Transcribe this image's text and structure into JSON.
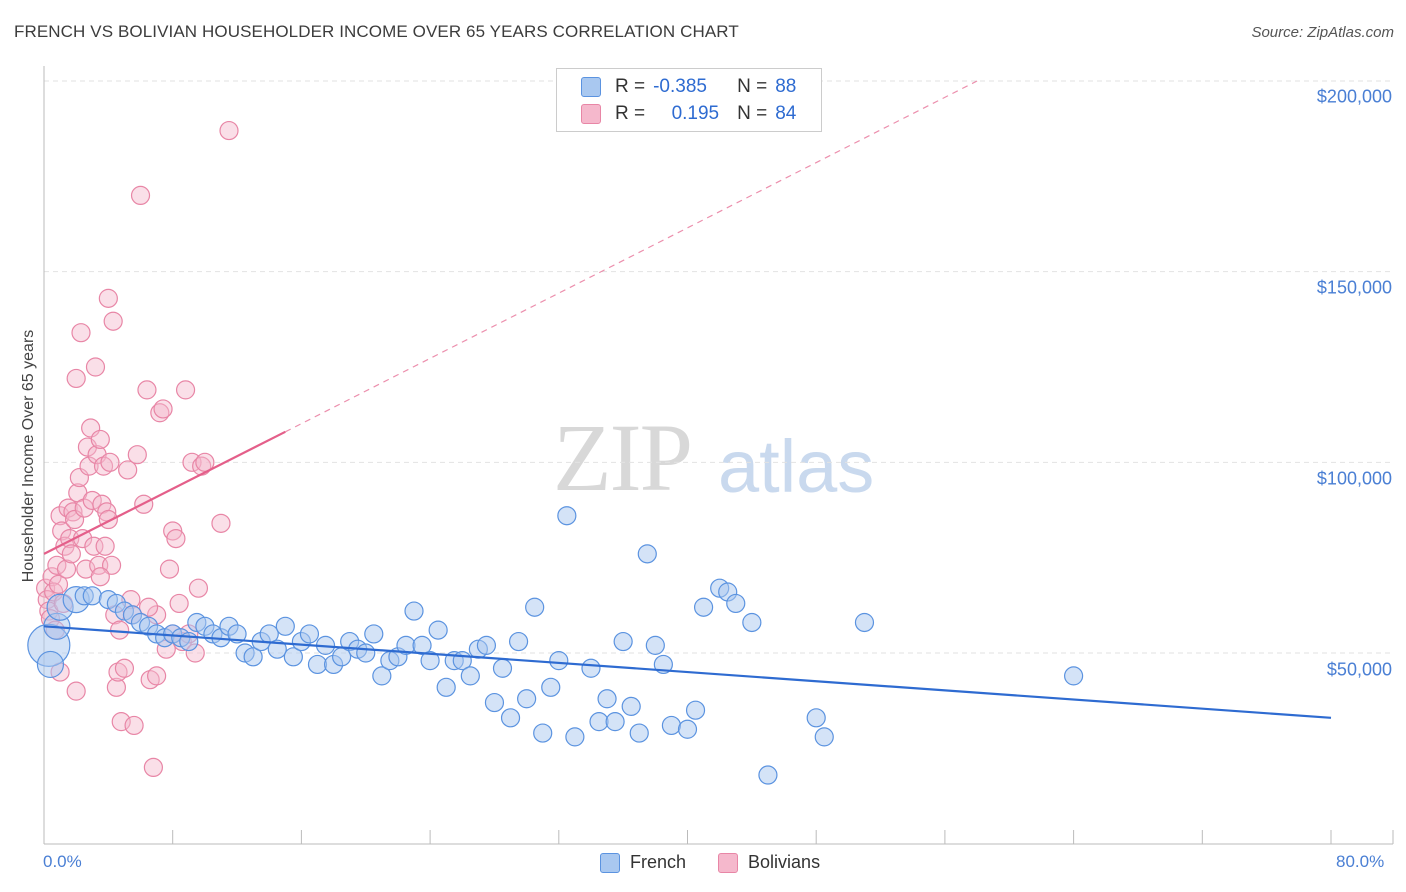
{
  "title": "FRENCH VS BOLIVIAN HOUSEHOLDER INCOME OVER 65 YEARS CORRELATION CHART",
  "source": "Source: ZipAtlas.com",
  "watermark": {
    "part1": "ZIP",
    "part2": "atlas"
  },
  "colors": {
    "french": "#5b93e0",
    "french_fill": "#a9c8f0",
    "french_line": "#2e6bd1",
    "bolivians": "#e886a6",
    "bolivians_fill": "#f5b8cc",
    "bolivians_line": "#e45f8a",
    "axis_text": "#4a7fd4",
    "grid": "#e2e2e2"
  },
  "legend": {
    "rows": [
      {
        "r_label": "R =",
        "r_value": "-0.385",
        "n_label": "N =",
        "n_value": "88"
      },
      {
        "r_label": "R =",
        "r_value": "0.195",
        "n_label": "N =",
        "n_value": "84"
      }
    ]
  },
  "bottom_legend": {
    "french": "French",
    "bolivians": "Bolivians"
  },
  "y_axis": {
    "label": "Householder Income Over 65 years",
    "ticks": [
      "$200,000",
      "$150,000",
      "$100,000",
      "$50,000"
    ]
  },
  "x_axis": {
    "min_label": "0.0%",
    "max_label": "80.0%"
  },
  "chart_data": {
    "type": "scatter",
    "title": "FRENCH VS BOLIVIAN HOUSEHOLDER INCOME OVER 65 YEARS CORRELATION CHART",
    "xlabel": "",
    "ylabel": "Householder Income Over 65 years",
    "xlim": [
      0,
      80
    ],
    "ylim": [
      0,
      210000
    ],
    "y_ticks": [
      50000,
      100000,
      150000,
      200000
    ],
    "grid": true,
    "legend_position": "top-center",
    "series": [
      {
        "name": "French",
        "r": -0.385,
        "n": 88,
        "trend": {
          "x0": 0,
          "y0": 57000,
          "x1": 80,
          "y1": 33000
        },
        "points": [
          [
            0.3,
            52000,
            3
          ],
          [
            0.4,
            47000,
            2
          ],
          [
            0.8,
            57000,
            2
          ],
          [
            1.0,
            62000,
            2
          ],
          [
            2.0,
            64000,
            2
          ],
          [
            2.5,
            65000,
            1
          ],
          [
            3.0,
            65000,
            1
          ],
          [
            4.0,
            64000,
            1
          ],
          [
            4.5,
            63000,
            1
          ],
          [
            5.0,
            61000,
            1
          ],
          [
            5.5,
            60000,
            1
          ],
          [
            6.0,
            58000,
            1
          ],
          [
            6.5,
            57000,
            1
          ],
          [
            7.0,
            55000,
            1
          ],
          [
            7.5,
            54000,
            1
          ],
          [
            8.0,
            55000,
            1
          ],
          [
            8.5,
            54000,
            1
          ],
          [
            9.0,
            53000,
            1
          ],
          [
            9.5,
            58000,
            1
          ],
          [
            10.0,
            57000,
            1
          ],
          [
            10.5,
            55000,
            1
          ],
          [
            11.0,
            54000,
            1
          ],
          [
            11.5,
            57000,
            1
          ],
          [
            12.0,
            55000,
            1
          ],
          [
            12.5,
            50000,
            1
          ],
          [
            13.0,
            49000,
            1
          ],
          [
            13.5,
            53000,
            1
          ],
          [
            14.0,
            55000,
            1
          ],
          [
            14.5,
            51000,
            1
          ],
          [
            15.0,
            57000,
            1
          ],
          [
            15.5,
            49000,
            1
          ],
          [
            16.0,
            53000,
            1
          ],
          [
            16.5,
            55000,
            1
          ],
          [
            17.0,
            47000,
            1
          ],
          [
            17.5,
            52000,
            1
          ],
          [
            18.0,
            47000,
            1
          ],
          [
            18.5,
            49000,
            1
          ],
          [
            19.0,
            53000,
            1
          ],
          [
            19.5,
            51000,
            1
          ],
          [
            20.0,
            50000,
            1
          ],
          [
            20.5,
            55000,
            1
          ],
          [
            21.0,
            44000,
            1
          ],
          [
            21.5,
            48000,
            1
          ],
          [
            22.0,
            49000,
            1
          ],
          [
            22.5,
            52000,
            1
          ],
          [
            23.0,
            61000,
            1
          ],
          [
            23.5,
            52000,
            1
          ],
          [
            24.0,
            48000,
            1
          ],
          [
            24.5,
            56000,
            1
          ],
          [
            25.0,
            41000,
            1
          ],
          [
            25.5,
            48000,
            1
          ],
          [
            26.0,
            48000,
            1
          ],
          [
            26.5,
            44000,
            1
          ],
          [
            27.0,
            51000,
            1
          ],
          [
            27.5,
            52000,
            1
          ],
          [
            28.0,
            37000,
            1
          ],
          [
            28.5,
            46000,
            1
          ],
          [
            29.0,
            33000,
            1
          ],
          [
            29.5,
            53000,
            1
          ],
          [
            30.0,
            38000,
            1
          ],
          [
            30.5,
            62000,
            1
          ],
          [
            31.0,
            29000,
            1
          ],
          [
            31.5,
            41000,
            1
          ],
          [
            32.0,
            48000,
            1
          ],
          [
            32.5,
            86000,
            1
          ],
          [
            33.0,
            28000,
            1
          ],
          [
            34.0,
            46000,
            1
          ],
          [
            34.5,
            32000,
            1
          ],
          [
            35.0,
            38000,
            1
          ],
          [
            35.5,
            32000,
            1
          ],
          [
            36.0,
            53000,
            1
          ],
          [
            36.5,
            36000,
            1
          ],
          [
            37.0,
            29000,
            1
          ],
          [
            37.5,
            76000,
            1
          ],
          [
            38.0,
            52000,
            1
          ],
          [
            38.5,
            47000,
            1
          ],
          [
            39.0,
            31000,
            1
          ],
          [
            40.0,
            30000,
            1
          ],
          [
            40.5,
            35000,
            1
          ],
          [
            41.0,
            62000,
            1
          ],
          [
            42.0,
            67000,
            1
          ],
          [
            42.5,
            66000,
            1
          ],
          [
            43.0,
            63000,
            1
          ],
          [
            44.0,
            58000,
            1
          ],
          [
            45.0,
            18000,
            1
          ],
          [
            48.0,
            33000,
            1
          ],
          [
            48.5,
            28000,
            1
          ],
          [
            51.0,
            58000,
            1
          ],
          [
            64.0,
            44000,
            1
          ]
        ]
      },
      {
        "name": "Bolivians",
        "r": 0.195,
        "n": 84,
        "trend": {
          "x0": 0,
          "y0": 76000,
          "x1": 15,
          "y1": 108000,
          "x2": 58,
          "y2": 200000
        },
        "points": [
          [
            0.1,
            67000,
            1
          ],
          [
            0.2,
            64000,
            1
          ],
          [
            0.3,
            61000,
            1
          ],
          [
            0.4,
            59000,
            1
          ],
          [
            0.5,
            70000,
            1
          ],
          [
            0.6,
            66000,
            1
          ],
          [
            0.7,
            56000,
            1
          ],
          [
            0.8,
            73000,
            1
          ],
          [
            0.9,
            68000,
            1
          ],
          [
            1.0,
            86000,
            1
          ],
          [
            1.1,
            82000,
            1
          ],
          [
            1.2,
            63000,
            1
          ],
          [
            1.3,
            78000,
            1
          ],
          [
            1.4,
            72000,
            1
          ],
          [
            1.5,
            88000,
            1
          ],
          [
            1.6,
            80000,
            1
          ],
          [
            1.7,
            76000,
            1
          ],
          [
            1.8,
            87000,
            1
          ],
          [
            1.9,
            85000,
            1
          ],
          [
            2.0,
            122000,
            1
          ],
          [
            2.1,
            92000,
            1
          ],
          [
            2.2,
            96000,
            1
          ],
          [
            2.3,
            134000,
            1
          ],
          [
            2.4,
            80000,
            1
          ],
          [
            2.5,
            88000,
            1
          ],
          [
            2.6,
            72000,
            1
          ],
          [
            2.7,
            104000,
            1
          ],
          [
            2.8,
            99000,
            1
          ],
          [
            2.9,
            109000,
            1
          ],
          [
            3.0,
            90000,
            1
          ],
          [
            3.1,
            78000,
            1
          ],
          [
            3.2,
            125000,
            1
          ],
          [
            3.3,
            102000,
            1
          ],
          [
            3.4,
            73000,
            1
          ],
          [
            3.5,
            106000,
            1
          ],
          [
            3.6,
            89000,
            1
          ],
          [
            3.7,
            99000,
            1
          ],
          [
            3.8,
            78000,
            1
          ],
          [
            3.9,
            87000,
            1
          ],
          [
            4.0,
            143000,
            1
          ],
          [
            4.1,
            100000,
            1
          ],
          [
            4.2,
            73000,
            1
          ],
          [
            4.3,
            137000,
            1
          ],
          [
            4.4,
            60000,
            1
          ],
          [
            4.5,
            41000,
            1
          ],
          [
            4.6,
            45000,
            1
          ],
          [
            4.7,
            56000,
            1
          ],
          [
            4.8,
            32000,
            1
          ],
          [
            5.0,
            46000,
            1
          ],
          [
            5.2,
            98000,
            1
          ],
          [
            5.4,
            64000,
            1
          ],
          [
            5.6,
            31000,
            1
          ],
          [
            5.8,
            102000,
            1
          ],
          [
            6.0,
            170000,
            1
          ],
          [
            6.2,
            89000,
            1
          ],
          [
            6.4,
            119000,
            1
          ],
          [
            6.6,
            43000,
            1
          ],
          [
            6.8,
            20000,
            1
          ],
          [
            7.0,
            60000,
            1
          ],
          [
            7.2,
            113000,
            1
          ],
          [
            7.4,
            114000,
            1
          ],
          [
            7.6,
            51000,
            1
          ],
          [
            7.8,
            72000,
            1
          ],
          [
            8.0,
            82000,
            1
          ],
          [
            8.2,
            80000,
            1
          ],
          [
            8.4,
            63000,
            1
          ],
          [
            8.6,
            53000,
            1
          ],
          [
            8.8,
            119000,
            1
          ],
          [
            9.0,
            55000,
            1
          ],
          [
            9.2,
            100000,
            1
          ],
          [
            9.4,
            50000,
            1
          ],
          [
            9.6,
            67000,
            1
          ],
          [
            9.8,
            99000,
            1
          ],
          [
            10.0,
            100000,
            1
          ],
          [
            11.0,
            84000,
            1
          ],
          [
            11.5,
            187000,
            1
          ],
          [
            3.5,
            70000,
            1
          ],
          [
            2.0,
            40000,
            1
          ],
          [
            1.0,
            45000,
            1
          ],
          [
            4.0,
            85000,
            1
          ],
          [
            5.5,
            60000,
            1
          ],
          [
            6.5,
            62000,
            1
          ],
          [
            7.0,
            44000,
            1
          ],
          [
            8.0,
            55000,
            1
          ]
        ]
      }
    ]
  }
}
